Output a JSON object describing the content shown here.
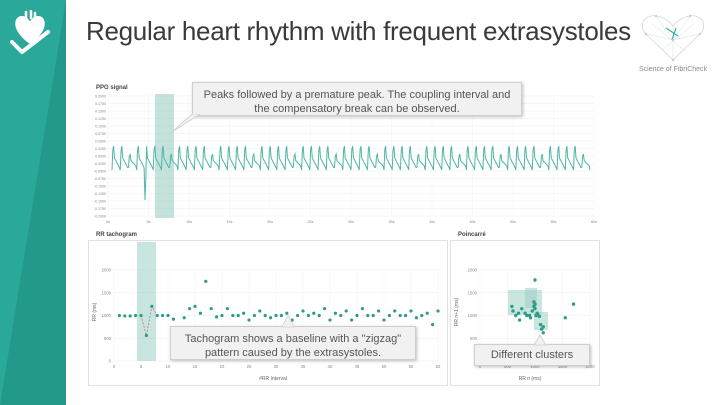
{
  "slide": {
    "title": "Regular heart rhythm with frequent extrasystoles",
    "brand_text": "Science of FibriCheck"
  },
  "icons": {
    "logo": "heart-check-icon",
    "brand": "geometric-heart-icon"
  },
  "colors": {
    "accent": "#2aa89a",
    "line": "#4db6a6",
    "point": "#2e9c88",
    "highlight": "#9dcfc5"
  },
  "ppg": {
    "label": "PPG signal",
    "y_ticks": [
      "0.2000",
      "0.1750",
      "0.1500",
      "0.1250",
      "0.1000",
      "0.0750",
      "0.0500",
      "0.0250",
      "0.0000",
      "-0.0250",
      "-0.0500",
      "-0.0750",
      "-0.1000",
      "-0.1250",
      "-0.1500",
      "-0.1750",
      "-0.2000"
    ],
    "x_ticks": [
      "0s",
      "5s",
      "10s",
      "15s",
      "20s",
      "25s",
      "30s",
      "35s",
      "40s",
      "45s",
      "50s",
      "55s",
      "60s"
    ],
    "callout": "Peaks followed by a premature  peak. The coupling interval and the compensatory break can be observed."
  },
  "tachogram": {
    "label": "RR tachogram",
    "y_ticks": [
      "2000",
      "1500",
      "1000",
      "500",
      "0"
    ],
    "x_ticks": [
      "0",
      "5",
      "10",
      "15",
      "20",
      "25",
      "30",
      "35",
      "40",
      "45",
      "50",
      "55",
      "60"
    ],
    "ylabel": "RR (ms)",
    "xlabel": "#RR Interval",
    "callout": "Tachogram shows a baseline with a \"zigzag\" pattern caused by the extrasystoles."
  },
  "poincare": {
    "label": "Poincarré",
    "y_ticks": [
      "2000",
      "1500",
      "1000",
      "500",
      "0"
    ],
    "x_ticks": [
      "0",
      "500",
      "1000",
      "1500",
      "2000"
    ],
    "ylabel": "RR n+1 (ms)",
    "xlabel": "RR n (ms)",
    "callout": "Different clusters"
  },
  "chart_data": [
    {
      "type": "scatter",
      "title": "RR tachogram",
      "xlabel": "#RR Interval",
      "ylabel": "RR (ms)",
      "xlim": [
        0,
        60
      ],
      "ylim": [
        0,
        2000
      ],
      "x": [
        1,
        2,
        3,
        4,
        5,
        6,
        7,
        8,
        9,
        10,
        11,
        12,
        13,
        14,
        15,
        16,
        17,
        18,
        19,
        20,
        21,
        22,
        23,
        24,
        25,
        26,
        27,
        28,
        29,
        30,
        31,
        32,
        33,
        34,
        35,
        36,
        37,
        38,
        39,
        40,
        41,
        42,
        43,
        44,
        45,
        46,
        47,
        48,
        49,
        50,
        51,
        52,
        53,
        54,
        55,
        56,
        57,
        58,
        59,
        60
      ],
      "y": [
        1000,
        990,
        990,
        1000,
        1000,
        560,
        1200,
        1000,
        1000,
        1000,
        920,
        600,
        950,
        1150,
        1200,
        1050,
        1750,
        1150,
        970,
        1000,
        1150,
        1000,
        1000,
        1050,
        900,
        1000,
        1100,
        1000,
        950,
        1000,
        1000,
        1050,
        900,
        1000,
        1100,
        1000,
        1050,
        1000,
        1150,
        900,
        1050,
        1000,
        1100,
        900,
        1000,
        1150,
        1000,
        1000,
        1100,
        900,
        1000,
        1100,
        1000,
        1000,
        1100,
        950,
        1000,
        1050,
        800,
        1100
      ]
    },
    {
      "type": "scatter",
      "title": "Poincarré",
      "xlabel": "RR n (ms)",
      "ylabel": "RR n+1 (ms)",
      "xlim": [
        0,
        2000
      ],
      "ylim": [
        0,
        2000
      ],
      "x": [
        580,
        600,
        650,
        700,
        720,
        760,
        820,
        850,
        900,
        920,
        950,
        980,
        1000,
        1020,
        1050,
        1000,
        980,
        1100,
        1120,
        1150,
        1000,
        1150,
        1700,
        1550,
        1040,
        1080
      ],
      "y": [
        1200,
        1100,
        1000,
        1050,
        900,
        1150,
        1050,
        1000,
        1000,
        950,
        1100,
        1200,
        1250,
        1000,
        1020,
        1780,
        1300,
        800,
        700,
        620,
        1150,
        750,
        1250,
        950,
        1050,
        980
      ]
    }
  ]
}
